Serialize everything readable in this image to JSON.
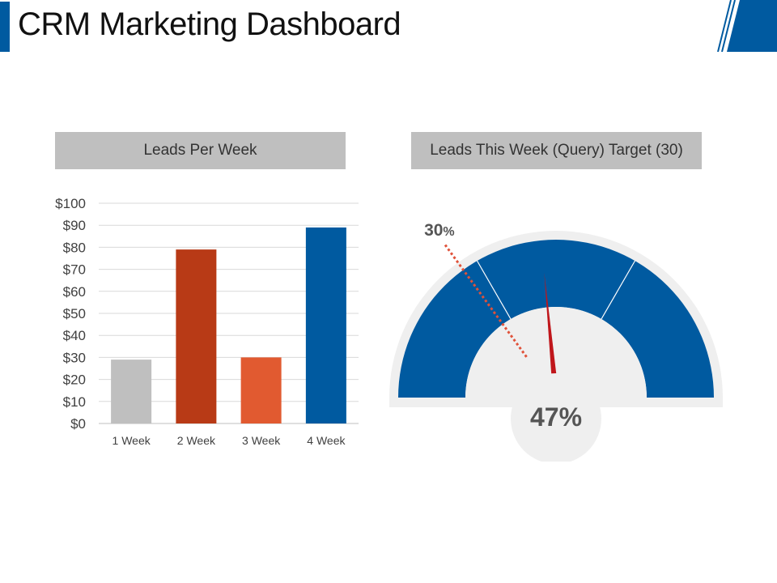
{
  "header": {
    "title": "CRM Marketing Dashboard",
    "accent_color": "#005aa0"
  },
  "chart_data": [
    {
      "type": "bar",
      "title": "Leads Per Week",
      "categories": [
        "1 Week",
        "2 Week",
        "3 Week",
        "4 Week"
      ],
      "values": [
        29,
        79,
        30,
        89
      ],
      "bar_colors": [
        "#bfbfbf",
        "#b83a16",
        "#e15a30",
        "#005aa0"
      ],
      "ylim": [
        0,
        100
      ],
      "yticks": [
        0,
        10,
        20,
        30,
        40,
        50,
        60,
        70,
        80,
        90,
        100
      ],
      "ytick_labels": [
        "$0",
        "$10",
        "$20",
        "$30",
        "$40",
        "$50",
        "$60",
        "$70",
        "$80",
        "$90",
        "$100"
      ],
      "xlabel": "",
      "ylabel": "",
      "grid": true
    },
    {
      "type": "gauge",
      "title": "Leads This Week (Query) Target (30)",
      "value": 47,
      "value_label": "47%",
      "target": 30,
      "target_label_num": "30",
      "target_label_unit": "%",
      "range": [
        0,
        100
      ],
      "band_color": "#005aa0",
      "needle_color": "#c0161b",
      "target_line_color": "#e0523a"
    }
  ]
}
